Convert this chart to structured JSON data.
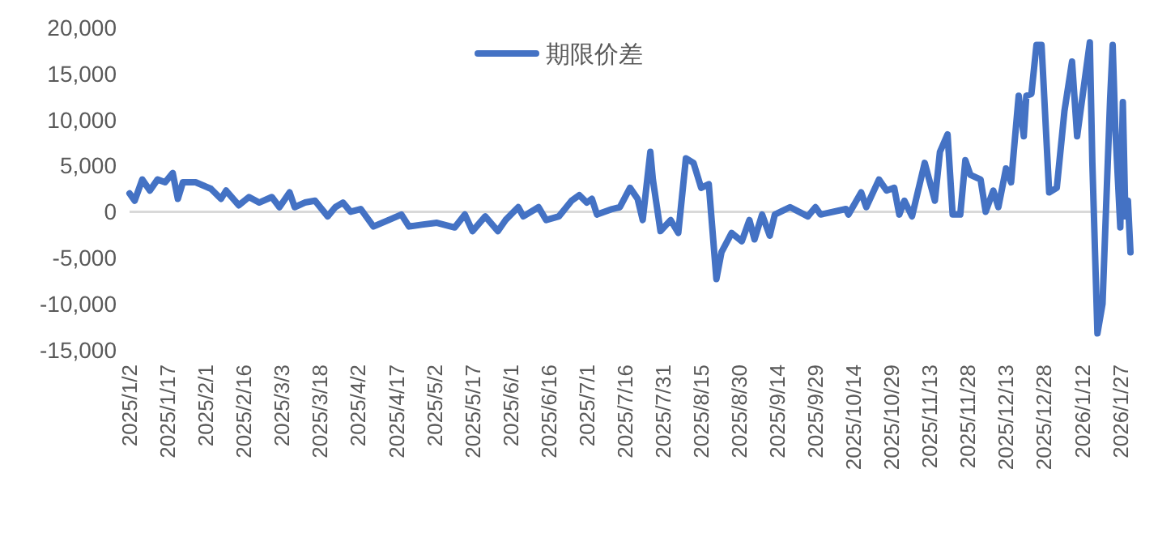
{
  "chart_data": {
    "type": "line",
    "legend": "top",
    "grid": false,
    "marker": "none",
    "line_style": "solid",
    "xlim": [
      "2025-01-02",
      "2026-01-31"
    ],
    "xticks": [
      {
        "value": "2025-01-02",
        "label": "2025/1/2"
      },
      {
        "value": "2025-01-17",
        "label": "2025/1/17"
      },
      {
        "value": "2025-02-01",
        "label": "2025/2/1"
      },
      {
        "value": "2025-02-16",
        "label": "2025/2/16"
      },
      {
        "value": "2025-03-03",
        "label": "2025/3/3"
      },
      {
        "value": "2025-03-18",
        "label": "2025/3/18"
      },
      {
        "value": "2025-04-02",
        "label": "2025/4/2"
      },
      {
        "value": "2025-04-17",
        "label": "2025/4/17"
      },
      {
        "value": "2025-05-02",
        "label": "2025/5/2"
      },
      {
        "value": "2025-05-17",
        "label": "2025/5/17"
      },
      {
        "value": "2025-06-01",
        "label": "2025/6/1"
      },
      {
        "value": "2025-06-16",
        "label": "2025/6/16"
      },
      {
        "value": "2025-07-01",
        "label": "2025/7/1"
      },
      {
        "value": "2025-07-16",
        "label": "2025/7/16"
      },
      {
        "value": "2025-07-31",
        "label": "2025/7/31"
      },
      {
        "value": "2025-08-15",
        "label": "2025/8/15"
      },
      {
        "value": "2025-08-30",
        "label": "2025/8/30"
      },
      {
        "value": "2025-09-14",
        "label": "2025/9/14"
      },
      {
        "value": "2025-09-29",
        "label": "2025/9/29"
      },
      {
        "value": "2025-10-14",
        "label": "2025/10/14"
      },
      {
        "value": "2025-10-29",
        "label": "2025/10/29"
      },
      {
        "value": "2025-11-13",
        "label": "2025/11/13"
      },
      {
        "value": "2025-11-28",
        "label": "2025/11/28"
      },
      {
        "value": "2025-12-13",
        "label": "2025/12/13"
      },
      {
        "value": "2025-12-28",
        "label": "2025/12/28"
      },
      {
        "value": "2026-01-12",
        "label": "2026/1/12"
      },
      {
        "value": "2026-01-27",
        "label": "2026/1/27"
      }
    ],
    "ylim": [
      -15000,
      20000
    ],
    "ref_lines": [
      {
        "axis": "y",
        "value": 0,
        "color": "#d9d9d9"
      }
    ],
    "yticks": [
      {
        "value": -15000,
        "label": "-15,000"
      },
      {
        "value": -10000,
        "label": "-10,000"
      },
      {
        "value": -5000,
        "label": "-5,000"
      },
      0,
      {
        "value": 5000,
        "label": "5,000"
      },
      {
        "value": 10000,
        "label": "10,000"
      },
      {
        "value": 15000,
        "label": "15,000"
      },
      {
        "value": 20000,
        "label": "20,000"
      }
    ],
    "x": [
      "2025-01-02",
      "2025-01-04",
      "2025-01-07",
      "2025-01-10",
      "2025-01-13",
      "2025-01-16",
      "2025-01-19",
      "2025-01-21",
      "2025-01-23",
      "2025-01-28",
      "2025-02-03",
      "2025-02-07",
      "2025-02-09",
      "2025-02-14",
      "2025-02-18",
      "2025-02-22",
      "2025-02-27",
      "2025-03-02",
      "2025-03-06",
      "2025-03-08",
      "2025-03-12",
      "2025-03-16",
      "2025-03-21",
      "2025-03-24",
      "2025-03-27",
      "2025-03-30",
      "2025-04-03",
      "2025-04-08",
      "2025-04-14",
      "2025-04-19",
      "2025-04-22",
      "2025-04-27",
      "2025-05-03",
      "2025-05-10",
      "2025-05-14",
      "2025-05-17",
      "2025-05-22",
      "2025-05-27",
      "2025-05-30",
      "2025-06-04",
      "2025-06-06",
      "2025-06-12",
      "2025-06-15",
      "2025-06-20",
      "2025-06-25",
      "2025-06-28",
      "2025-07-01",
      "2025-07-03",
      "2025-07-05",
      "2025-07-11",
      "2025-07-14",
      "2025-07-18",
      "2025-07-21",
      "2025-07-23",
      "2025-07-26",
      "2025-07-27",
      "2025-07-30",
      "2025-08-03",
      "2025-08-06",
      "2025-08-09",
      "2025-08-12",
      "2025-08-15",
      "2025-08-18",
      "2025-08-21",
      "2025-08-23",
      "2025-08-27",
      "2025-08-31",
      "2025-09-03",
      "2025-09-05",
      "2025-09-08",
      "2025-09-11",
      "2025-09-13",
      "2025-09-19",
      "2025-09-26",
      "2025-09-29",
      "2025-10-01",
      "2025-10-11",
      "2025-10-12",
      "2025-10-17",
      "2025-10-19",
      "2025-10-24",
      "2025-10-27",
      "2025-10-30",
      "2025-11-01",
      "2025-11-03",
      "2025-11-06",
      "2025-11-11",
      "2025-11-15",
      "2025-11-17",
      "2025-11-20",
      "2025-11-22",
      "2025-11-25",
      "2025-11-27",
      "2025-11-29",
      "2025-12-03",
      "2025-12-05",
      "2025-12-08",
      "2025-12-10",
      "2025-12-13",
      "2025-12-15",
      "2025-12-18",
      "2025-12-20",
      "2025-12-21",
      "2025-12-23",
      "2025-12-25",
      "2025-12-27",
      "2025-12-30",
      "2026-01-02",
      "2026-01-05",
      "2026-01-08",
      "2026-01-10",
      "2026-01-15",
      "2026-01-16",
      "2026-01-18",
      "2026-01-20",
      "2026-01-23",
      "2026-01-24",
      "2026-01-25",
      "2026-01-27",
      "2026-01-28",
      "2026-01-29",
      "2026-01-30",
      "2026-01-31"
    ],
    "series": [
      {
        "name": "期限价差",
        "color": "#4472c4",
        "values": [
          2000,
          1200,
          3500,
          2300,
          3500,
          3200,
          4200,
          1400,
          3200,
          3200,
          2500,
          1400,
          2300,
          700,
          1600,
          1000,
          1600,
          500,
          2100,
          500,
          1000,
          1200,
          -500,
          500,
          1000,
          0,
          300,
          -1600,
          -900,
          -300,
          -1600,
          -1400,
          -1200,
          -1700,
          -300,
          -2100,
          -500,
          -2100,
          -900,
          500,
          -500,
          500,
          -900,
          -500,
          1200,
          1800,
          1000,
          1400,
          -300,
          300,
          500,
          2600,
          1400,
          -900,
          6500,
          3500,
          -2100,
          -900,
          -2300,
          5800,
          5300,
          2600,
          3000,
          -7300,
          -4400,
          -2300,
          -3200,
          -900,
          -3000,
          -300,
          -2600,
          -300,
          500,
          -500,
          500,
          -300,
          300,
          -300,
          2100,
          500,
          3500,
          2300,
          2600,
          -300,
          1200,
          -500,
          5300,
          1200,
          6500,
          8400,
          -300,
          -300,
          5600,
          4000,
          3500,
          0,
          2300,
          500,
          4700,
          3200,
          12600,
          8200,
          12600,
          12800,
          18100,
          18100,
          2100,
          2600,
          10900,
          16300,
          8200,
          18400,
          5300,
          -13200,
          -10000,
          12300,
          18100,
          9300,
          -1700,
          11900,
          -500,
          1200,
          -4400
        ]
      }
    ]
  }
}
